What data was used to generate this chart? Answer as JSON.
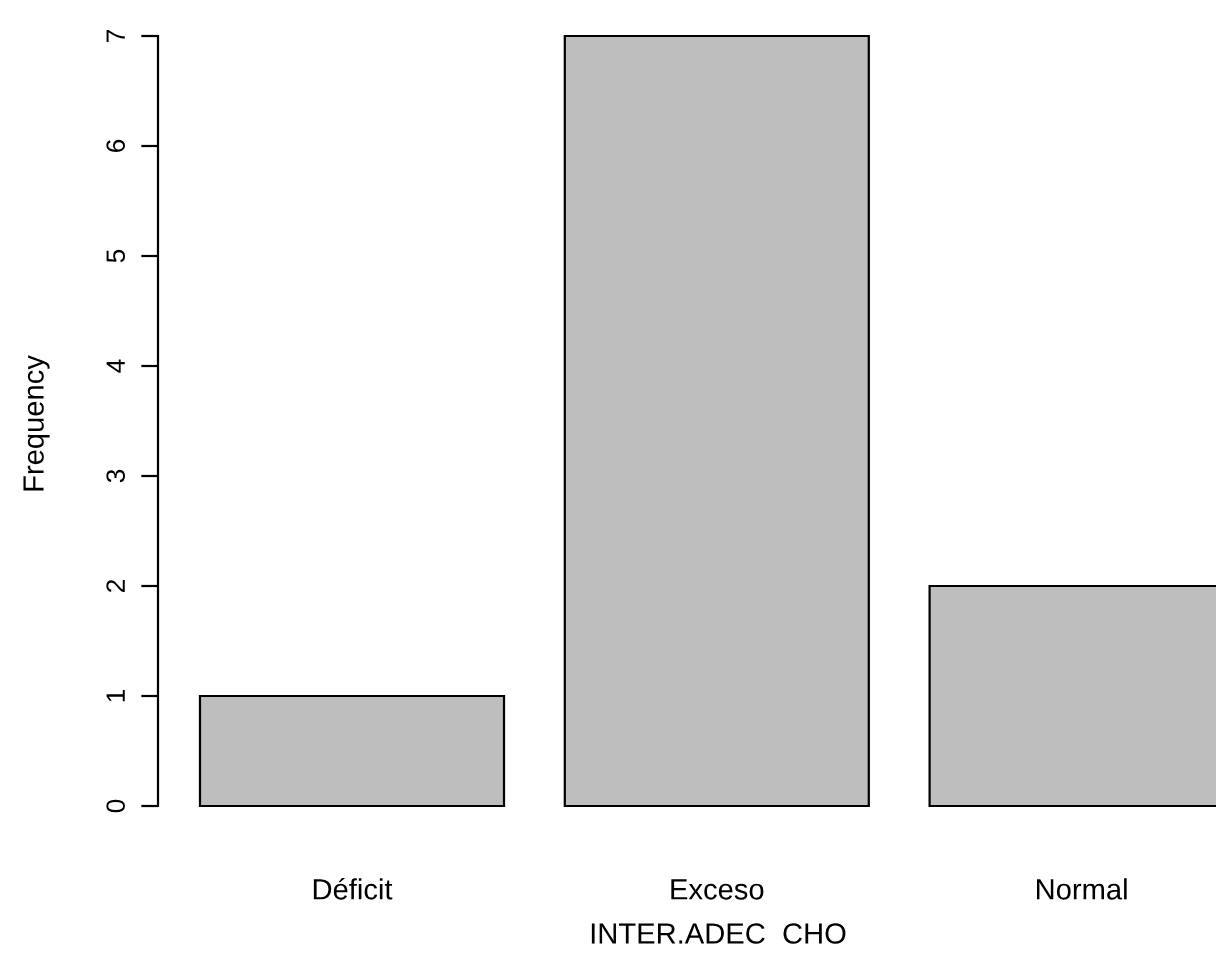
{
  "chart_data": {
    "type": "bar",
    "xlabel": "INTER.ADEC  CHO",
    "ylabel": "Frequency",
    "categories": [
      "Déficit",
      "Exceso",
      "Normal"
    ],
    "values": [
      1,
      7,
      2
    ],
    "color": "#bebebe",
    "ylim": [
      0,
      7
    ],
    "yticks": [
      0,
      1,
      2,
      3,
      4,
      5,
      6,
      7
    ],
    "grid": false,
    "legend": false
  }
}
